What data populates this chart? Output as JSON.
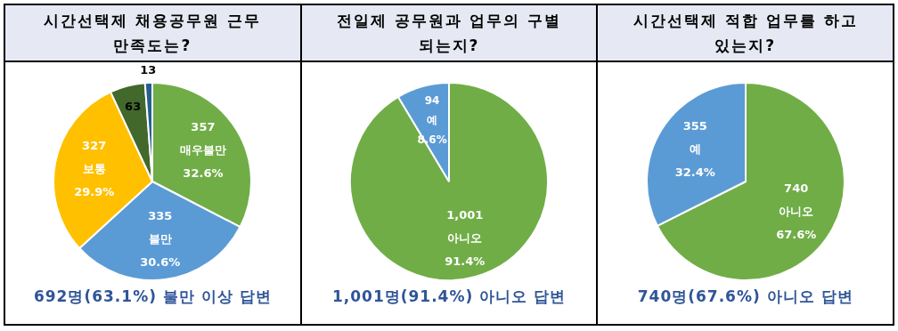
{
  "chart_data": [
    {
      "type": "pie",
      "title": "시간선택제 채용공무원 근무 만족도는?",
      "categories": [
        "매우불만",
        "불만",
        "보통",
        null,
        null
      ],
      "values": [
        357,
        335,
        327,
        63,
        13
      ],
      "colors": [
        "#70ad47",
        "#5b9bd5",
        "#ffc000",
        "#43682b",
        "#255e91"
      ],
      "value_labels": [
        "357\n32.6%",
        "335\n30.6%",
        "327\n29.9%",
        "63",
        "13"
      ],
      "legend": false,
      "annotations": [
        "692명(63.1%) 불만 이상 답변"
      ]
    },
    {
      "type": "pie",
      "title": "전일제 공무원과 업무의 구별 되는지?",
      "categories": [
        "아니오",
        "예"
      ],
      "values": [
        91.4,
        8.6
      ],
      "colors": [
        "#70ad47",
        "#5b9bd5"
      ],
      "value_labels": [
        "1,001\n91.4%",
        "94\n8.6%"
      ],
      "legend": false,
      "annotations": [
        "1,001명(91.4%) 아니오 답변"
      ]
    },
    {
      "type": "pie",
      "title": "시간선택제 적합 업무를 하고 있는지?",
      "categories": [
        "아니오",
        "예"
      ],
      "values": [
        67.6,
        32.4
      ],
      "colors": [
        "#70ad47",
        "#5b9bd5"
      ],
      "value_labels": [
        "740\n67.6%",
        "355\n32.4%"
      ],
      "legend": false,
      "annotations": [
        "740명(67.6%) 아니오 답변"
      ]
    }
  ]
}
